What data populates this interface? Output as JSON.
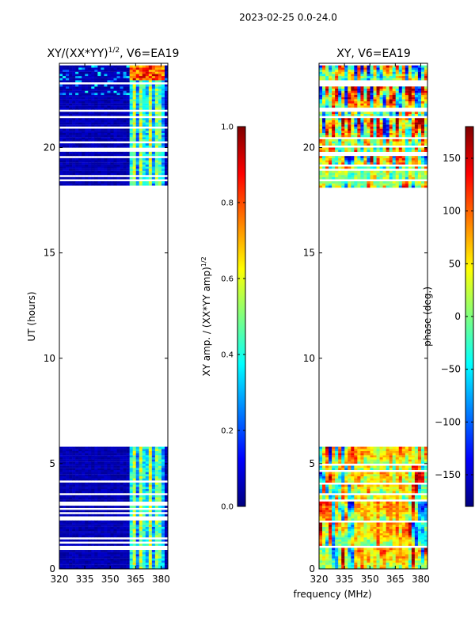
{
  "figure_title": "2023-02-25 0.0-24.0",
  "shared_xlabel": "frequency (MHz)",
  "colors": {
    "jet": [
      "#00007f",
      "#0000ff",
      "#007fff",
      "#00ffff",
      "#7fff7f",
      "#ffff00",
      "#ff7f00",
      "#ff0000",
      "#7f0000"
    ]
  },
  "chart_data": [
    {
      "type": "heatmap",
      "title": "XY/(XX*YY)^(1/2), V6=EA19",
      "title_main": "XY/(XX*YY)",
      "title_sup": "1/2",
      "title_rest": ", V6=EA19",
      "xlabel": "",
      "ylabel": "UT (hours)",
      "x_ticks": [
        "320",
        "335",
        "350",
        "365",
        "380"
      ],
      "x_tick_values": [
        320,
        335,
        350,
        365,
        380
      ],
      "xlim": [
        320,
        384
      ],
      "y_ticks": [
        "0",
        "5",
        "10",
        "15",
        "20"
      ],
      "y_tick_values": [
        0,
        5,
        10,
        15,
        20
      ],
      "ylim": [
        0,
        24
      ],
      "data_blocks": [
        [
          0,
          5.8
        ],
        [
          18.1,
          23.9
        ]
      ],
      "bright_band": [
        361,
        383
      ],
      "colorbar": {
        "label": "XY amp. / (XX*YY amp)",
        "label_sup": "1/2",
        "ticks": [
          "0.0",
          "0.2",
          "0.4",
          "0.6",
          "0.8",
          "1.0"
        ],
        "tick_values": [
          0,
          0.2,
          0.4,
          0.6,
          0.8,
          1.0
        ],
        "range": [
          0,
          1
        ]
      },
      "pattern": "amplitude"
    },
    {
      "type": "heatmap",
      "title": "XY, V6=EA19",
      "xlabel": "",
      "ylabel": "",
      "x_ticks": [
        "320",
        "335",
        "350",
        "365",
        "380"
      ],
      "x_tick_values": [
        320,
        335,
        350,
        365,
        380
      ],
      "xlim": [
        320,
        384
      ],
      "y_ticks": [
        "0",
        "5",
        "10",
        "15",
        "20"
      ],
      "y_tick_values": [
        0,
        5,
        10,
        15,
        20
      ],
      "ylim": [
        0,
        24
      ],
      "data_blocks": [
        [
          0,
          5.8
        ],
        [
          18.1,
          23.9
        ]
      ],
      "colorbar": {
        "label": "phase (deg.)",
        "ticks": [
          "−150",
          "−100",
          "−50",
          "0",
          "50",
          "100",
          "150"
        ],
        "tick_values": [
          -150,
          -100,
          -50,
          0,
          50,
          100,
          150
        ],
        "range": [
          -180,
          180
        ]
      },
      "pattern": "phase"
    }
  ]
}
